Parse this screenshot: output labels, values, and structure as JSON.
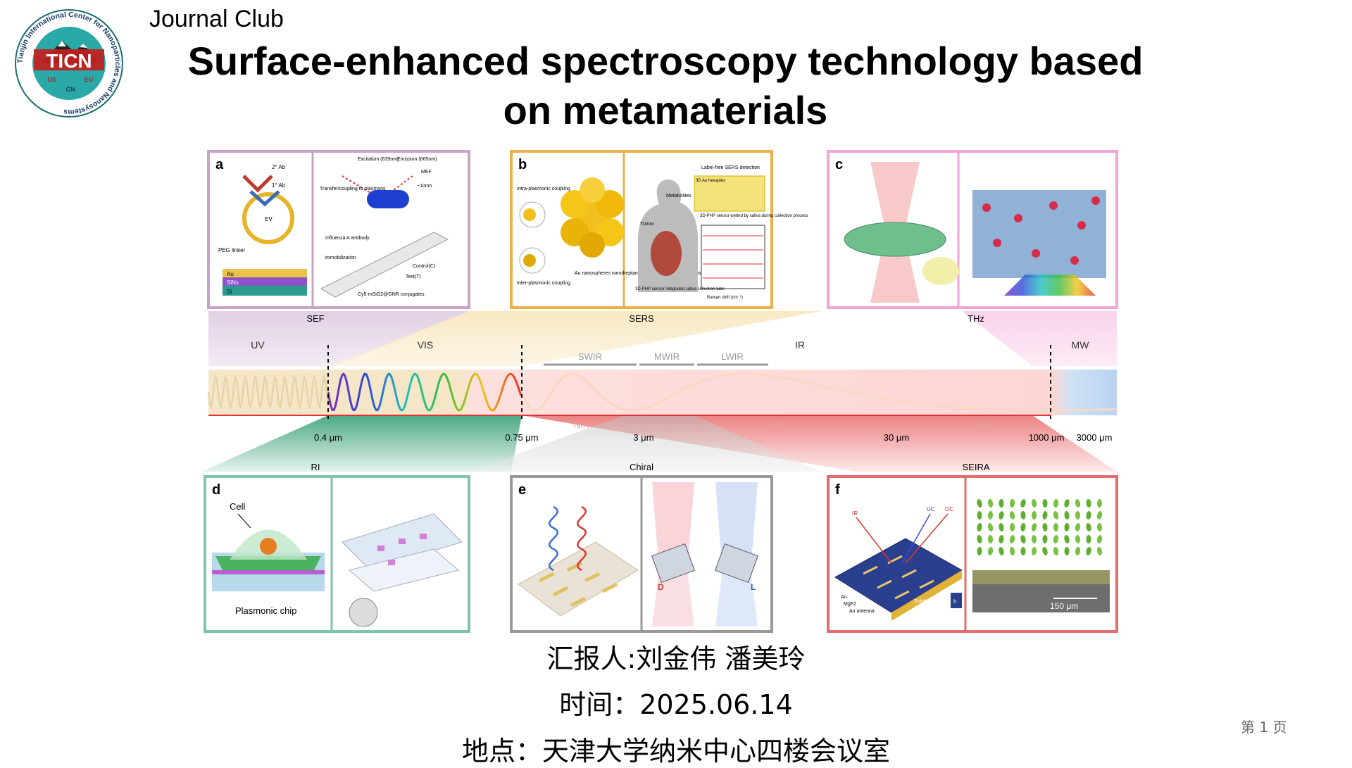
{
  "header": {
    "kicker": "Journal Club",
    "title_line1": "Surface-enhanced spectroscopy technology based",
    "title_line2": "on metamaterials"
  },
  "logo": {
    "ring_text": "Tianjin International Center for Nanoparticles and Nanosystems",
    "mark": "TICN",
    "sub_left": "US",
    "sub_right": "EU",
    "sub_bottom": "CN"
  },
  "figure": {
    "panels_top": [
      {
        "letter": "a",
        "technique": "SEF",
        "labels": [
          "2° Ab",
          "1° Ab",
          "EV",
          "PEG linker",
          "Au",
          "SiNx",
          "Si",
          "Excitation (639nm)",
          "Emission (665nm)",
          "MEF",
          "~10nm",
          "Transfer/coupling to plasmons",
          "Influenza A antibody",
          "Immobilization",
          "Control(C)",
          "Test(T)",
          "Cy5-mSiO2@GNR conjugates"
        ]
      },
      {
        "letter": "b",
        "technique": "SERS",
        "labels": [
          "Intra-plasmonic coupling",
          "Inter-plasmonic coupling",
          "Au nanospheres nanoheptamer for strong near-field focusing",
          "Label-free SERS detection",
          "3D Au hexaplex",
          "3D-PHP sensor wetted by saliva during collection process",
          "Metabolites",
          "Tumor",
          "3D-PHP sensor integrated saliva collection tube",
          "Raman shift (cm⁻¹)"
        ]
      },
      {
        "letter": "c",
        "technique": "THz",
        "labels": []
      }
    ],
    "spectrum": {
      "bands": [
        "UV",
        "VIS",
        "IR",
        "MW"
      ],
      "ir_sub": [
        "SWIR",
        "MWIR",
        "LWIR"
      ],
      "lower_sub": [
        "NIR",
        "MIR",
        "FIR"
      ],
      "ticks": [
        "0.4 μm",
        "0.75 μm",
        "3 μm",
        "30 μm",
        "1000 μm",
        "3000 μm"
      ]
    },
    "panels_bottom": [
      {
        "letter": "d",
        "technique": "RI",
        "labels": [
          "Cell",
          "Plasmonic chip"
        ]
      },
      {
        "letter": "e",
        "technique": "Chiral",
        "labels": [
          "D",
          "L"
        ]
      },
      {
        "letter": "f",
        "technique": "SEIRA",
        "labels": [
          "IR",
          "UC",
          "OC",
          "Au",
          "MgF2",
          "Au antenna",
          "Substrate",
          "h",
          "150 μm"
        ]
      }
    ],
    "colors": {
      "sef": "#c8a2c8",
      "sers": "#e9b24a",
      "thz": "#f2a6d8",
      "ri": "#7fc4ad",
      "chiral": "#9a9a9a",
      "seira": "#e36d6d"
    }
  },
  "footer": {
    "reporter": "汇报人:刘金伟 潘美玲",
    "time": "时间：2025.06.14",
    "place": "地点：天津大学纳米中心四楼会议室",
    "page": "第 1 页"
  }
}
